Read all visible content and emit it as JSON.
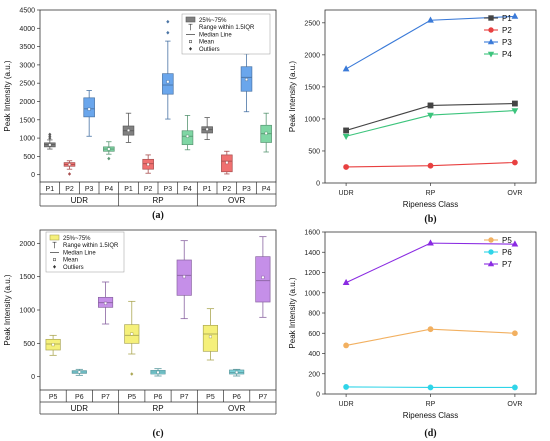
{
  "chart_data": [
    {
      "id": "a",
      "type": "box",
      "panel_label": "(a)",
      "ylabel": "Peak Intensity (a.u.)",
      "ylim": [
        -200,
        4500
      ],
      "yticks": [
        0,
        500,
        1000,
        1500,
        2000,
        2500,
        3000,
        3500,
        4000,
        4500
      ],
      "groups": [
        "UDR",
        "RP",
        "OVR"
      ],
      "categories": [
        "P1",
        "P2",
        "P3",
        "P4"
      ],
      "colors": {
        "P1": "#808080",
        "P2": "#f07070",
        "P3": "#6aa6ec",
        "P4": "#7fd6a4"
      },
      "legend": [
        "25%~75%",
        "Range within 1.5IQR",
        "Median Line",
        "Mean",
        "Outliers"
      ],
      "boxes": [
        {
          "group": "UDR",
          "cat": "P1",
          "q1": 760,
          "q3": 870,
          "median": 820,
          "mean": 815,
          "wlo": 700,
          "whi": 950,
          "outliers": [
            1000,
            1050,
            1100
          ]
        },
        {
          "group": "UDR",
          "cat": "P2",
          "q1": 230,
          "q3": 330,
          "median": 280,
          "mean": 275,
          "wlo": 150,
          "whi": 380,
          "outliers": [
            20
          ]
        },
        {
          "group": "UDR",
          "cat": "P3",
          "q1": 1580,
          "q3": 2100,
          "median": 1800,
          "mean": 1790,
          "wlo": 1050,
          "whi": 2300,
          "outliers": []
        },
        {
          "group": "UDR",
          "cat": "P4",
          "q1": 640,
          "q3": 760,
          "median": 700,
          "mean": 700,
          "wlo": 560,
          "whi": 900,
          "outliers": [
            440
          ]
        },
        {
          "group": "RP",
          "cat": "P1",
          "q1": 1080,
          "q3": 1330,
          "median": 1200,
          "mean": 1210,
          "wlo": 880,
          "whi": 1680,
          "outliers": []
        },
        {
          "group": "RP",
          "cat": "P2",
          "q1": 150,
          "q3": 420,
          "median": 300,
          "mean": 280,
          "wlo": 40,
          "whi": 540,
          "outliers": []
        },
        {
          "group": "RP",
          "cat": "P3",
          "q1": 2200,
          "q3": 2760,
          "median": 2450,
          "mean": 2540,
          "wlo": 1520,
          "whi": 3650,
          "outliers": [
            3880,
            4180
          ]
        },
        {
          "group": "RP",
          "cat": "P4",
          "q1": 820,
          "q3": 1200,
          "median": 1050,
          "mean": 1050,
          "wlo": 680,
          "whi": 1620,
          "outliers": []
        },
        {
          "group": "OVR",
          "cat": "P1",
          "q1": 1140,
          "q3": 1310,
          "median": 1230,
          "mean": 1240,
          "wlo": 960,
          "whi": 1560,
          "outliers": []
        },
        {
          "group": "OVR",
          "cat": "P2",
          "q1": 80,
          "q3": 540,
          "median": 370,
          "mean": 330,
          "wlo": 20,
          "whi": 640,
          "outliers": []
        },
        {
          "group": "OVR",
          "cat": "P3",
          "q1": 2280,
          "q3": 2950,
          "median": 2660,
          "mean": 2600,
          "wlo": 1720,
          "whi": 3300,
          "outliers": []
        },
        {
          "group": "OVR",
          "cat": "P4",
          "q1": 880,
          "q3": 1350,
          "median": 1120,
          "mean": 1130,
          "wlo": 620,
          "whi": 1680,
          "outliers": []
        }
      ]
    },
    {
      "id": "b",
      "type": "line",
      "panel_label": "(b)",
      "xlabel": "Ripeness Class",
      "ylabel": "Peak Intensity (a.u.)",
      "ylim": [
        0,
        2700
      ],
      "yticks": [
        0,
        500,
        1000,
        1500,
        2000,
        2500
      ],
      "categories": [
        "UDR",
        "RP",
        "OVR"
      ],
      "series": [
        {
          "name": "P1",
          "color": "#444444",
          "marker": "square",
          "values": [
            820,
            1210,
            1240
          ]
        },
        {
          "name": "P2",
          "color": "#e84040",
          "marker": "circle",
          "values": [
            250,
            270,
            320
          ]
        },
        {
          "name": "P3",
          "color": "#3a7ad8",
          "marker": "triangle-up",
          "values": [
            1780,
            2540,
            2600
          ]
        },
        {
          "name": "P4",
          "color": "#3cc47c",
          "marker": "triangle-down",
          "values": [
            730,
            1060,
            1130
          ]
        }
      ]
    },
    {
      "id": "c",
      "type": "box",
      "panel_label": "(c)",
      "ylabel": "Peak Intensity (a.u.)",
      "ylim": [
        -200,
        2200
      ],
      "yticks": [
        0,
        500,
        1000,
        1500,
        2000
      ],
      "groups": [
        "UDR",
        "RP",
        "OVR"
      ],
      "categories": [
        "P5",
        "P6",
        "P7"
      ],
      "colors": {
        "P5": "#f5f07a",
        "P6": "#7fd9e0",
        "P7": "#c58fe8"
      },
      "legend": [
        "25%~75%",
        "Range within 1.5IQR",
        "Median Line",
        "Mean",
        "Outliers"
      ],
      "boxes": [
        {
          "group": "UDR",
          "cat": "P5",
          "q1": 400,
          "q3": 560,
          "median": 490,
          "mean": 480,
          "wlo": 320,
          "whi": 620,
          "outliers": []
        },
        {
          "group": "UDR",
          "cat": "P6",
          "q1": 50,
          "q3": 90,
          "median": 70,
          "mean": 70,
          "wlo": 20,
          "whi": 110,
          "outliers": []
        },
        {
          "group": "UDR",
          "cat": "P7",
          "q1": 1040,
          "q3": 1190,
          "median": 1110,
          "mean": 1100,
          "wlo": 790,
          "whi": 1420,
          "outliers": []
        },
        {
          "group": "RP",
          "cat": "P5",
          "q1": 500,
          "q3": 780,
          "median": 620,
          "mean": 640,
          "wlo": 340,
          "whi": 1130,
          "outliers": [
            40
          ]
        },
        {
          "group": "RP",
          "cat": "P6",
          "q1": 40,
          "q3": 95,
          "median": 70,
          "mean": 65,
          "wlo": 10,
          "whi": 120,
          "outliers": []
        },
        {
          "group": "RP",
          "cat": "P7",
          "q1": 1220,
          "q3": 1750,
          "median": 1520,
          "mean": 1500,
          "wlo": 870,
          "whi": 2040,
          "outliers": []
        },
        {
          "group": "OVR",
          "cat": "P5",
          "q1": 380,
          "q3": 770,
          "median": 640,
          "mean": 600,
          "wlo": 250,
          "whi": 1020,
          "outliers": []
        },
        {
          "group": "OVR",
          "cat": "P6",
          "q1": 40,
          "q3": 100,
          "median": 65,
          "mean": 65,
          "wlo": 10,
          "whi": 110,
          "outliers": []
        },
        {
          "group": "OVR",
          "cat": "P7",
          "q1": 1120,
          "q3": 1800,
          "median": 1440,
          "mean": 1490,
          "wlo": 890,
          "whi": 2100,
          "outliers": []
        }
      ]
    },
    {
      "id": "d",
      "type": "line",
      "panel_label": "(d)",
      "xlabel": "Ripeness Class",
      "ylabel": "Peak Intensity (a.u.)",
      "ylim": [
        0,
        1600
      ],
      "yticks": [
        0,
        200,
        400,
        600,
        800,
        1000,
        1200,
        1400,
        1600
      ],
      "categories": [
        "UDR",
        "RP",
        "OVR"
      ],
      "series": [
        {
          "name": "P5",
          "color": "#f2b060",
          "marker": "circle",
          "values": [
            480,
            640,
            600
          ]
        },
        {
          "name": "P6",
          "color": "#2fd4e8",
          "marker": "circle",
          "values": [
            70,
            65,
            65
          ]
        },
        {
          "name": "P7",
          "color": "#8a2be2",
          "marker": "triangle-up",
          "values": [
            1100,
            1490,
            1480
          ]
        }
      ]
    }
  ]
}
